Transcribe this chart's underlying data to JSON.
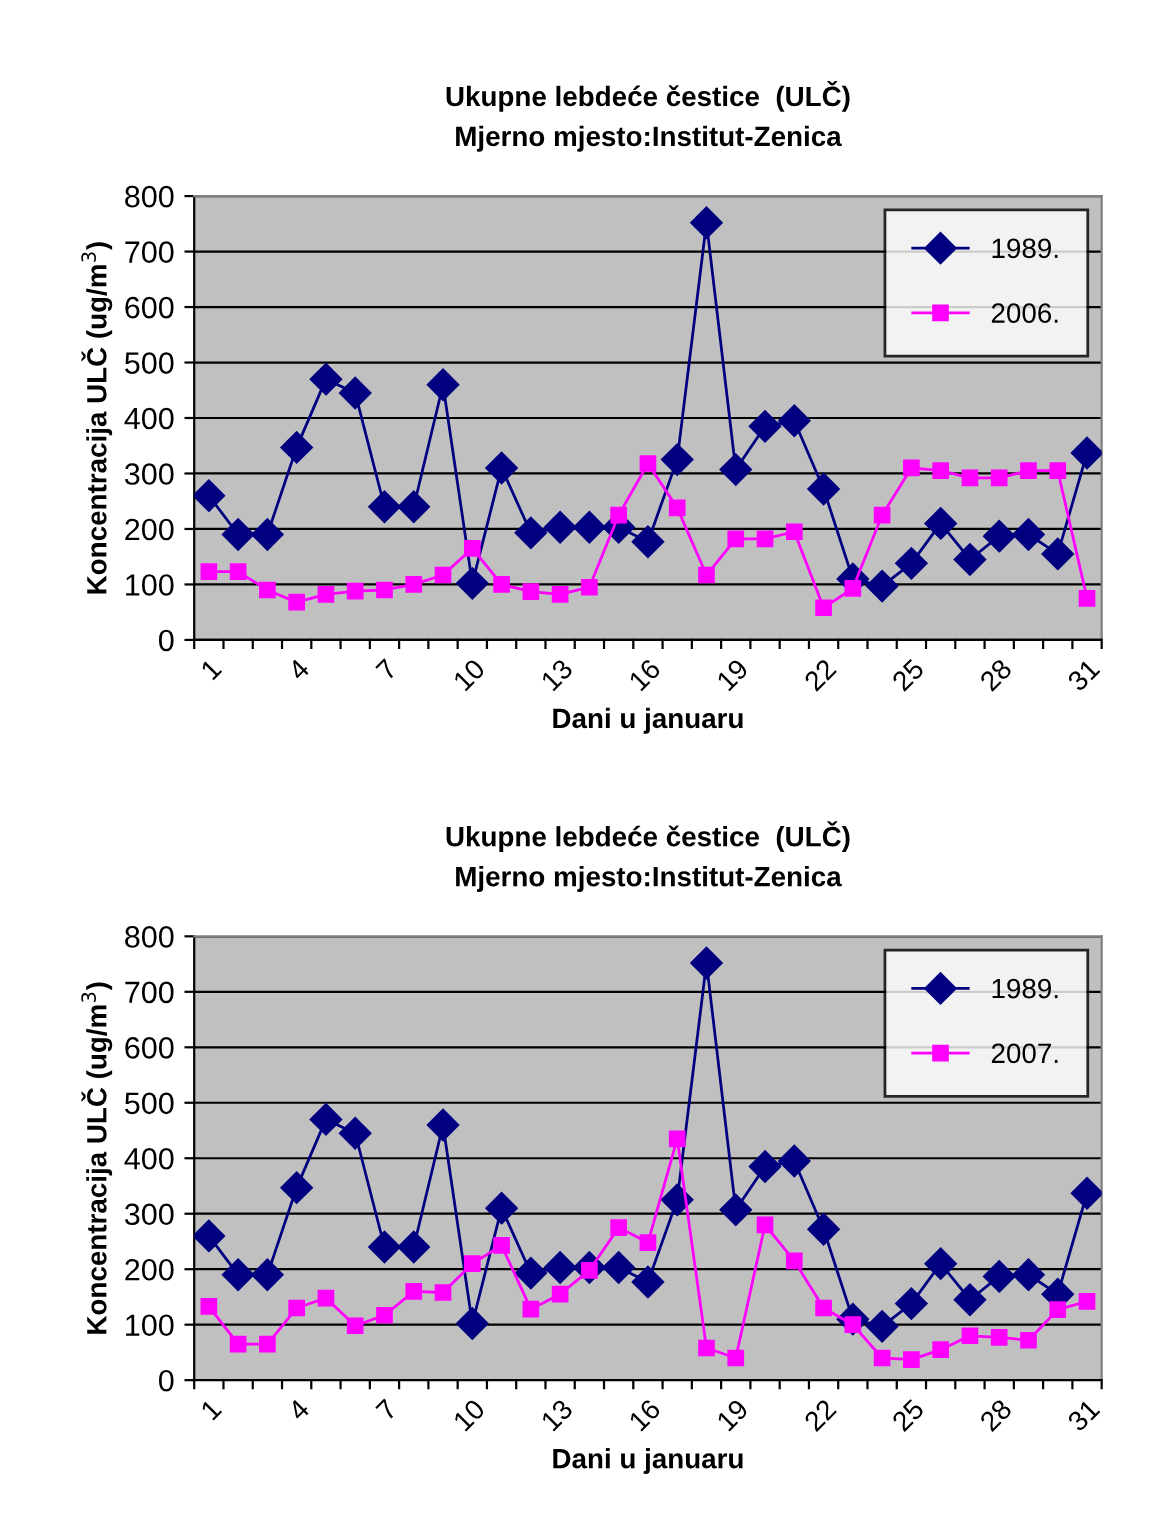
{
  "chart_data": [
    {
      "type": "line",
      "title": "Ukupne lebdeće čestice  (ULČ)",
      "subtitle": "Mjerno mjesto:Institut-Zenica",
      "xlabel": "Dani u januaru",
      "ylabel": "Koncentracija ULČ (ug/m$^{3}$)",
      "categories": [
        "1",
        null,
        null,
        "4",
        null,
        null,
        "7",
        null,
        null,
        "10",
        null,
        null,
        "13",
        null,
        null,
        "16",
        null,
        null,
        "19",
        null,
        null,
        "22",
        null,
        null,
        "25",
        null,
        null,
        "28",
        null,
        null,
        "31"
      ],
      "ylim": [
        0,
        800
      ],
      "yticks": [
        0,
        100,
        200,
        300,
        400,
        500,
        600,
        700,
        800
      ],
      "grid": "y",
      "legend": "top right",
      "series": [
        {
          "name": "1989.",
          "color": "#000080",
          "marker": "diamond",
          "values": [
            260,
            190,
            190,
            347,
            470,
            445,
            240,
            240,
            460,
            102,
            310,
            193,
            203,
            203,
            203,
            177,
            325,
            752,
            307,
            385,
            395,
            272,
            110,
            97,
            138,
            210,
            145,
            187,
            190,
            155,
            337
          ]
        },
        {
          "name": "2006.",
          "color": "#ff00ff",
          "marker": "square",
          "values": [
            123,
            123,
            90,
            68,
            82,
            88,
            90,
            100,
            117,
            165,
            100,
            87,
            82,
            95,
            225,
            318,
            238,
            117,
            182,
            182,
            195,
            58,
            93,
            225,
            310,
            305,
            292,
            292,
            305,
            305,
            75
          ]
        }
      ]
    },
    {
      "type": "line",
      "title": "Ukupne lebdeće čestice  (ULČ)",
      "subtitle": "Mjerno mjesto:Institut-Zenica",
      "xlabel": "Dani u januaru",
      "ylabel": "Koncentracija ULČ (ug/m$^{3}$)",
      "categories": [
        "1",
        null,
        null,
        "4",
        null,
        null,
        "7",
        null,
        null,
        "10",
        null,
        null,
        "13",
        null,
        null,
        "16",
        null,
        null,
        "19",
        null,
        null,
        "22",
        null,
        null,
        "25",
        null,
        null,
        "28",
        null,
        null,
        "31"
      ],
      "ylim": [
        0,
        800
      ],
      "yticks": [
        0,
        100,
        200,
        300,
        400,
        500,
        600,
        700,
        800
      ],
      "grid": "y",
      "legend": "top right",
      "series": [
        {
          "name": "1989.",
          "color": "#000080",
          "marker": "diamond",
          "values": [
            260,
            190,
            190,
            347,
            470,
            445,
            240,
            240,
            460,
            102,
            310,
            193,
            203,
            203,
            203,
            177,
            325,
            752,
            307,
            385,
            395,
            272,
            110,
            97,
            138,
            210,
            145,
            187,
            190,
            155,
            337
          ]
        },
        {
          "name": "2007.",
          "color": "#ff00ff",
          "marker": "square",
          "values": [
            133,
            65,
            65,
            130,
            148,
            98,
            117,
            160,
            158,
            210,
            243,
            128,
            155,
            198,
            275,
            248,
            435,
            58,
            40,
            280,
            215,
            130,
            100,
            40,
            37,
            55,
            80,
            77,
            72,
            127,
            142
          ]
        }
      ]
    }
  ]
}
